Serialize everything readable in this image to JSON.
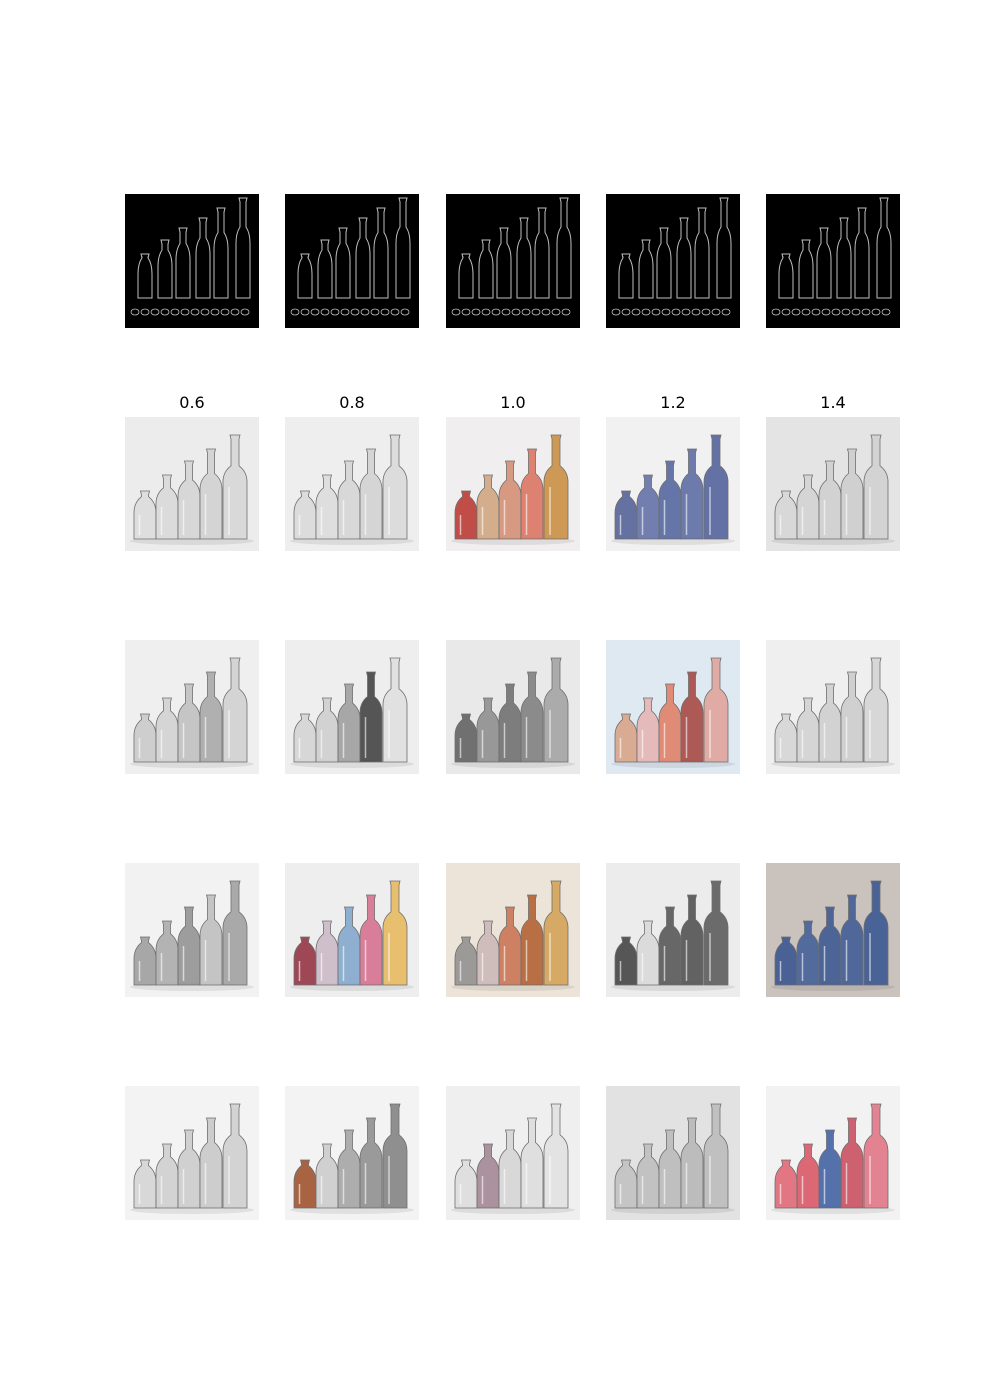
{
  "scale_labels": [
    "0.6",
    "0.8",
    "1.0",
    "1.2",
    "1.4"
  ],
  "rows": [
    [
      {
        "kind": "edge",
        "bg": "#000000",
        "ink": "#bfbfbf"
      },
      {
        "kind": "edge",
        "bg": "#000000",
        "ink": "#bfbfbf"
      },
      {
        "kind": "edge",
        "bg": "#000000",
        "ink": "#bfbfbf"
      },
      {
        "kind": "edge",
        "bg": "#000000",
        "ink": "#bfbfbf"
      },
      {
        "kind": "edge",
        "bg": "#000000",
        "ink": "#bfbfbf"
      }
    ],
    [
      {
        "kind": "sketch",
        "bg": "#ececec",
        "colors": [
          "#dcdcdc",
          "#d8d8d8",
          "#d4d4d4",
          "#d0d0d0",
          "#d6d6d6"
        ]
      },
      {
        "kind": "sketch",
        "bg": "#eeeeee",
        "colors": [
          "#d8d8d8",
          "#dadada",
          "#d4d4d4",
          "#d0d0d0",
          "#d8d8d8"
        ]
      },
      {
        "kind": "sketch",
        "bg": "#f0eeee",
        "colors": [
          "#b8302c",
          "#cfa27a",
          "#d48a6e",
          "#d96f5a",
          "#c88a3a"
        ]
      },
      {
        "kind": "sketch",
        "bg": "#f1f1f1",
        "colors": [
          "#4b5a93",
          "#5a6aa3",
          "#4e5f9a",
          "#5566a0",
          "#4a5b98"
        ]
      },
      {
        "kind": "sketch",
        "bg": "#e4e4e4",
        "colors": [
          "#d6d6d6",
          "#d2d2d2",
          "#cfcfcf",
          "#cccccc",
          "#d0d0d0"
        ]
      }
    ],
    [
      {
        "kind": "sketch",
        "bg": "#efefef",
        "colors": [
          "#c8c8c8",
          "#d0d0d0",
          "#bdbdbd",
          "#a4a4a4",
          "#cfcfcf"
        ]
      },
      {
        "kind": "sketch",
        "bg": "#eeeeee",
        "colors": [
          "#d2d2d2",
          "#cccccc",
          "#9a9a9a",
          "#3a3a3a",
          "#dedede"
        ]
      },
      {
        "kind": "sketch",
        "bg": "#e9e9e9",
        "colors": [
          "#5a5a5a",
          "#8a8a8a",
          "#6a6a6a",
          "#7a7a7a",
          "#a0a0a0"
        ]
      },
      {
        "kind": "sketch",
        "bg": "#dfe9f2",
        "colors": [
          "#d9a083",
          "#e5b3b0",
          "#e07a60",
          "#a5403a",
          "#e0a097"
        ]
      },
      {
        "kind": "sketch",
        "bg": "#efefef",
        "colors": [
          "#d4d4d4",
          "#d0d0d0",
          "#cdcdcd",
          "#cacaca",
          "#d2d2d2"
        ]
      }
    ],
    [
      {
        "kind": "sketch",
        "bg": "#f2f2f2",
        "colors": [
          "#9a9a9a",
          "#a8a8a8",
          "#8e8e8e",
          "#bcbcbc",
          "#9c9c9c"
        ]
      },
      {
        "kind": "sketch",
        "bg": "#eeeeee",
        "colors": [
          "#8f2a3a",
          "#c9b6c3",
          "#7da3c9",
          "#d36a8a",
          "#e5b657"
        ]
      },
      {
        "kind": "sketch",
        "bg": "#ece4d8",
        "colors": [
          "#8d8d8d",
          "#c9b6b6",
          "#c9704e",
          "#b05a2a",
          "#d2a050"
        ]
      },
      {
        "kind": "sketch",
        "bg": "#ececec",
        "colors": [
          "#3c3c3c",
          "#d8d8d8",
          "#505050",
          "#4a4a4a",
          "#555555"
        ]
      },
      {
        "kind": "sketch",
        "bg": "#c9c2bd",
        "colors": [
          "#33508e",
          "#3d5a96",
          "#36548f",
          "#3a5893",
          "#34528f"
        ]
      }
    ],
    [
      {
        "kind": "sketch",
        "bg": "#f3f3f3",
        "colors": [
          "#d2d2d2",
          "#cdcdcd",
          "#c9c9c9",
          "#c6c6c6",
          "#cccccc"
        ]
      },
      {
        "kind": "sketch",
        "bg": "#f3f3f3",
        "colors": [
          "#9a4a22",
          "#c9c9c9",
          "#a0a0a0",
          "#8a8a8a",
          "#7c7c7c"
        ]
      },
      {
        "kind": "sketch",
        "bg": "#efefef",
        "colors": [
          "#dcdcdc",
          "#a08090",
          "#d4d4d4",
          "#dcdcdc",
          "#e0e0e0"
        ]
      },
      {
        "kind": "sketch",
        "bg": "#e2e2e2",
        "colors": [
          "#c0c0c0",
          "#bcbcbc",
          "#b8b8b8",
          "#b5b5b5",
          "#bababa"
        ]
      },
      {
        "kind": "sketch",
        "bg": "#f2f2f2",
        "colors": [
          "#e06070",
          "#d85060",
          "#3a5aa0",
          "#c84858",
          "#e07080"
        ]
      }
    ]
  ]
}
